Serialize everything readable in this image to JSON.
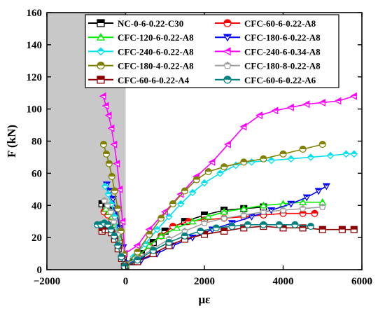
{
  "chart_data": {
    "type": "line",
    "xlabel": "με",
    "ylabel": "F (kN)",
    "xlim": [
      -2000,
      6000
    ],
    "ylim": [
      0,
      160
    ],
    "xticks": [
      -2000,
      0,
      2000,
      4000,
      6000
    ],
    "yticks": [
      0,
      20,
      40,
      60,
      80,
      100,
      120,
      140,
      160
    ],
    "x_tick_labels": [
      "−2000",
      "0",
      "2000",
      "4000",
      "6000"
    ],
    "y_tick_labels": [
      "0",
      "20",
      "40",
      "60",
      "80",
      "100",
      "120",
      "140",
      "160"
    ],
    "shaded_region_x": [
      -2000,
      0
    ],
    "shaded_color": "#c8c8c8",
    "grid": false,
    "legend_position": "top",
    "series": [
      {
        "name": "NC-0-6-0.22-C30",
        "color": "#000000",
        "marker": "square",
        "x": [
          -600,
          -500,
          -420,
          -340,
          -250,
          -150,
          -60,
          0,
          200,
          400,
          700,
          1000,
          1500,
          2000,
          2500,
          3000,
          3500
        ],
        "y": [
          41,
          39,
          37,
          33,
          26,
          17,
          8,
          2,
          5,
          10,
          17,
          24,
          30,
          34,
          37,
          38,
          39
        ]
      },
      {
        "name": "CFC-60-6-0.22-A8",
        "color": "#ff0000",
        "marker": "circle",
        "x": [
          -550,
          -450,
          -350,
          -250,
          -150,
          -60,
          0,
          300,
          600,
          900,
          1200,
          1600,
          2000,
          2500,
          3000,
          3500,
          4000,
          4500,
          4800
        ],
        "y": [
          36,
          34,
          31,
          26,
          18,
          9,
          3,
          8,
          15,
          21,
          27,
          30,
          31,
          32,
          33,
          34,
          35,
          35,
          35
        ]
      },
      {
        "name": "CFC-120-6-0.22-A8",
        "color": "#00ee00",
        "marker": "triangle-up",
        "x": [
          -500,
          -420,
          -340,
          -260,
          -170,
          -80,
          0,
          300,
          600,
          900,
          1300,
          1700,
          2100,
          2500,
          3000,
          3500,
          4000,
          4500,
          5000
        ],
        "y": [
          38,
          36,
          33,
          28,
          20,
          11,
          3,
          8,
          15,
          21,
          26,
          30,
          33,
          36,
          38,
          40,
          41,
          42,
          42
        ]
      },
      {
        "name": "CFC-180-6-0.22-A8",
        "color": "#0000ff",
        "marker": "triangle-down",
        "x": [
          -480,
          -400,
          -320,
          -240,
          -150,
          -60,
          0,
          400,
          800,
          1200,
          1700,
          2200,
          2700,
          3200,
          3700,
          4200,
          4600,
          4900,
          5100
        ],
        "y": [
          53,
          49,
          44,
          37,
          26,
          14,
          4,
          6,
          10,
          15,
          20,
          25,
          29,
          33,
          37,
          41,
          45,
          49,
          52
        ]
      },
      {
        "name": "CFC-240-6-0.22-A8",
        "color": "#00e0f0",
        "marker": "diamond",
        "x": [
          -520,
          -440,
          -360,
          -280,
          -190,
          -100,
          -30,
          200,
          500,
          800,
          1100,
          1400,
          1700,
          2000,
          2400,
          2800,
          3200,
          3700,
          4200,
          4700,
          5200,
          5600,
          5800
        ],
        "y": [
          52,
          47,
          41,
          33,
          22,
          11,
          3,
          8,
          16,
          25,
          33,
          41,
          48,
          54,
          60,
          65,
          67,
          68,
          69,
          70,
          71,
          72,
          72
        ]
      },
      {
        "name": "CFC-240-6-0.34-A8",
        "color": "#ff00ff",
        "marker": "triangle-left",
        "x": [
          -570,
          -500,
          -430,
          -360,
          -290,
          -220,
          -150,
          -80,
          -20,
          300,
          600,
          1000,
          1400,
          1800,
          2200,
          2600,
          3000,
          3400,
          3800,
          4200,
          4600,
          5000,
          5400,
          5800
        ],
        "y": [
          108,
          102,
          96,
          88,
          78,
          66,
          50,
          30,
          10,
          15,
          25,
          36,
          47,
          58,
          67,
          78,
          89,
          96,
          99,
          101,
          103,
          104,
          105,
          108
        ]
      },
      {
        "name": "CFC-180-4-0.22-A8",
        "color": "#808000",
        "marker": "circle",
        "x": [
          -560,
          -490,
          -420,
          -350,
          -280,
          -200,
          -120,
          -50,
          0,
          300,
          600,
          900,
          1200,
          1500,
          1800,
          2100,
          2500,
          3000,
          3500,
          4000,
          4500,
          5000
        ],
        "y": [
          78,
          72,
          66,
          58,
          49,
          38,
          24,
          10,
          3,
          11,
          22,
          32,
          41,
          49,
          56,
          61,
          64,
          67,
          69,
          72,
          75,
          78
        ]
      },
      {
        "name": "CFC-180-8-0.22-A8",
        "color": "#a0a0a0",
        "marker": "pentagon",
        "x": [
          -540,
          -460,
          -380,
          -300,
          -210,
          -120,
          -40,
          300,
          700,
          1100,
          1500,
          2000,
          2500,
          3000,
          3500,
          4000,
          4500,
          5000
        ],
        "y": [
          43,
          40,
          36,
          30,
          22,
          12,
          3,
          7,
          13,
          19,
          24,
          29,
          32,
          34,
          36,
          37,
          38,
          39
        ]
      },
      {
        "name": "CFC-60-6-0.22-A4",
        "color": "#8b0000",
        "marker": "square",
        "x": [
          -600,
          -520,
          -440,
          -360,
          -280,
          -190,
          -100,
          -30,
          300,
          700,
          1100,
          1500,
          2000,
          2500,
          3000,
          3500,
          4000,
          4500,
          5000,
          5500,
          5800
        ],
        "y": [
          24,
          25,
          25,
          23,
          19,
          13,
          7,
          2,
          5,
          10,
          15,
          19,
          22,
          24,
          26,
          27,
          26,
          26,
          25,
          25,
          25
        ]
      },
      {
        "name": "CFC-60-6-0.22-A6",
        "color": "#008080",
        "marker": "circle",
        "x": [
          -720,
          -630,
          -540,
          -450,
          -370,
          -290,
          -200,
          -110,
          -30,
          300,
          700,
          1100,
          1500,
          1900,
          2300,
          2700,
          3100,
          3500,
          3900,
          4300,
          4700
        ],
        "y": [
          28,
          28,
          29,
          28,
          25,
          21,
          15,
          8,
          2,
          6,
          12,
          17,
          21,
          24,
          26,
          27,
          28,
          28,
          28,
          28,
          27
        ]
      }
    ]
  }
}
